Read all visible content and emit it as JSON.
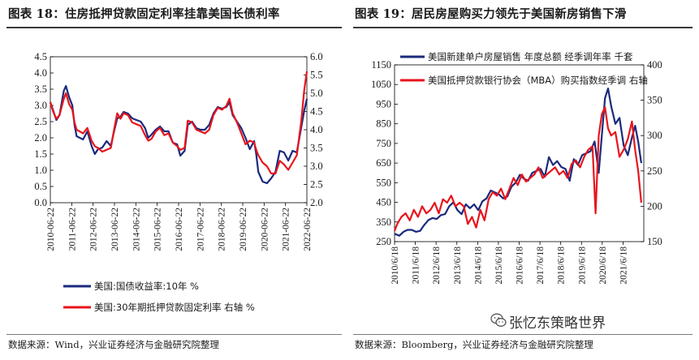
{
  "left": {
    "title": "图表 18：住房抵押贷款固定利率挂靠美国长债利率",
    "source": "数据来源：Wind，兴业证券经济与金融研究院整理"
  },
  "right": {
    "title": "图表 19：居民房屋购买力领先于美国新房销售下滑",
    "source": "数据来源：Bloomberg，兴业证券经济与金融研究院整理"
  },
  "watermark": {
    "text": "张忆东策略世界",
    "icon": "wechat-icon"
  },
  "colors": {
    "navy": "#1a2a7c",
    "red": "#e8141c"
  },
  "chart_data": [
    {
      "type": "line",
      "x_ticks": [
        "2010-06-22",
        "2011-06-22",
        "2012-06-22",
        "2013-06-22",
        "2014-06-22",
        "2015-06-22",
        "2016-06-22",
        "2017-06-22",
        "2018-06-22",
        "2019-06-22",
        "2020-06-22",
        "2021-06-22",
        "2022-06-22"
      ],
      "y_left": {
        "range": [
          0,
          4.5
        ],
        "ticks": [
          "0.0",
          "0.5",
          "1.0",
          "1.5",
          "2.0",
          "2.5",
          "3.0",
          "3.5",
          "4.0",
          "4.5"
        ]
      },
      "y_right": {
        "range": [
          2.0,
          6.0
        ],
        "ticks": [
          "2.0",
          "2.5",
          "3.0",
          "3.5",
          "4.0",
          "4.5",
          "5.0",
          "5.5",
          "6.0"
        ]
      },
      "legend_position": "bottom",
      "series": [
        {
          "name": "美国:国债收益率:10年 %",
          "axis": "left",
          "color": "#1a2a7c",
          "x": [
            2010.47,
            2010.6,
            2010.75,
            2010.9,
            2011.1,
            2011.2,
            2011.35,
            2011.5,
            2011.6,
            2011.7,
            2011.85,
            2012.0,
            2012.2,
            2012.4,
            2012.55,
            2012.7,
            2012.9,
            2013.1,
            2013.3,
            2013.45,
            2013.6,
            2013.75,
            2013.9,
            2014.1,
            2014.3,
            2014.5,
            2014.7,
            2014.9,
            2015.05,
            2015.2,
            2015.4,
            2015.6,
            2015.8,
            2016.0,
            2016.2,
            2016.4,
            2016.55,
            2016.75,
            2016.9,
            2017.1,
            2017.3,
            2017.5,
            2017.7,
            2017.9,
            2018.1,
            2018.3,
            2018.5,
            2018.7,
            2018.85,
            2019.0,
            2019.2,
            2019.4,
            2019.6,
            2019.8,
            2020.0,
            2020.1,
            2020.2,
            2020.4,
            2020.6,
            2020.8,
            2021.0,
            2021.2,
            2021.4,
            2021.6,
            2021.8,
            2022.0,
            2022.2,
            2022.35,
            2022.47
          ],
          "y": [
            3.1,
            2.85,
            2.55,
            2.7,
            3.45,
            3.6,
            3.25,
            3.0,
            2.4,
            2.05,
            2.0,
            1.95,
            2.2,
            1.75,
            1.5,
            1.65,
            1.7,
            1.9,
            1.75,
            2.2,
            2.6,
            2.65,
            2.8,
            2.75,
            2.6,
            2.55,
            2.5,
            2.3,
            2.0,
            2.1,
            2.25,
            2.35,
            2.2,
            2.2,
            1.85,
            1.8,
            1.45,
            1.6,
            2.4,
            2.5,
            2.3,
            2.25,
            2.25,
            2.4,
            2.75,
            2.95,
            2.9,
            2.95,
            3.1,
            2.7,
            2.5,
            2.3,
            2.0,
            1.65,
            1.9,
            1.5,
            0.95,
            0.65,
            0.6,
            0.75,
            0.95,
            1.6,
            1.55,
            1.3,
            1.6,
            1.55,
            2.3,
            2.85,
            3.2
          ]
        },
        {
          "name": "美国:30年期抵押贷款固定利率 右轴 %",
          "axis": "right",
          "color": "#e8141c",
          "x": [
            2010.47,
            2010.6,
            2010.75,
            2010.9,
            2011.1,
            2011.2,
            2011.35,
            2011.5,
            2011.6,
            2011.7,
            2011.85,
            2012.0,
            2012.2,
            2012.4,
            2012.55,
            2012.7,
            2012.9,
            2013.1,
            2013.3,
            2013.45,
            2013.6,
            2013.75,
            2013.9,
            2014.1,
            2014.3,
            2014.5,
            2014.7,
            2014.9,
            2015.05,
            2015.2,
            2015.4,
            2015.6,
            2015.8,
            2016.0,
            2016.2,
            2016.4,
            2016.55,
            2016.75,
            2016.9,
            2017.1,
            2017.3,
            2017.5,
            2017.7,
            2017.9,
            2018.1,
            2018.3,
            2018.5,
            2018.7,
            2018.85,
            2019.0,
            2019.2,
            2019.4,
            2019.6,
            2019.8,
            2020.0,
            2020.1,
            2020.2,
            2020.4,
            2020.6,
            2020.8,
            2021.0,
            2021.2,
            2021.4,
            2021.6,
            2021.8,
            2022.0,
            2022.2,
            2022.35,
            2022.47
          ],
          "y": [
            4.75,
            4.5,
            4.3,
            4.4,
            4.85,
            5.0,
            4.7,
            4.55,
            4.2,
            4.0,
            3.95,
            3.9,
            4.05,
            3.7,
            3.55,
            3.5,
            3.4,
            3.45,
            3.5,
            4.0,
            4.45,
            4.3,
            4.45,
            4.4,
            4.2,
            4.15,
            4.1,
            3.85,
            3.7,
            3.75,
            3.95,
            4.05,
            3.85,
            3.9,
            3.65,
            3.55,
            3.45,
            3.5,
            4.25,
            4.2,
            4.0,
            3.95,
            3.9,
            4.0,
            4.4,
            4.6,
            4.55,
            4.65,
            4.85,
            4.45,
            4.2,
            3.9,
            3.6,
            3.7,
            3.65,
            3.45,
            3.3,
            3.1,
            3.0,
            2.8,
            2.8,
            3.15,
            3.05,
            2.9,
            3.1,
            3.3,
            4.2,
            5.1,
            5.6
          ]
        }
      ]
    },
    {
      "type": "line",
      "x_ticks": [
        "2010/6/18",
        "2011/6/18",
        "2012/6/18",
        "2013/6/18",
        "2014/6/18",
        "2015/6/18",
        "2016/6/18",
        "2017/6/18",
        "2018/6/18",
        "2019/6/18",
        "2020/6/18",
        "2021/6/18"
      ],
      "y_left": {
        "range": [
          250,
          1150
        ],
        "ticks": [
          "250",
          "350",
          "450",
          "550",
          "650",
          "750",
          "850",
          "950",
          "1050",
          "1150"
        ]
      },
      "y_right": {
        "range": [
          150,
          400
        ],
        "ticks": [
          "150",
          "200",
          "250",
          "300",
          "350",
          "400"
        ]
      },
      "legend_position": "top-left",
      "series": [
        {
          "name": "美国新建单户房屋销售 年度总额 经季调年率 千套",
          "axis": "left",
          "color": "#1a2a7c",
          "x": [
            2010.47,
            2010.7,
            2010.9,
            2011.1,
            2011.3,
            2011.5,
            2011.7,
            2011.9,
            2012.1,
            2012.3,
            2012.5,
            2012.7,
            2012.9,
            2013.1,
            2013.3,
            2013.5,
            2013.7,
            2013.9,
            2014.1,
            2014.3,
            2014.5,
            2014.7,
            2014.9,
            2015.1,
            2015.3,
            2015.5,
            2015.7,
            2015.9,
            2016.1,
            2016.3,
            2016.5,
            2016.7,
            2016.9,
            2017.1,
            2017.3,
            2017.5,
            2017.7,
            2017.9,
            2018.1,
            2018.3,
            2018.5,
            2018.7,
            2018.9,
            2019.1,
            2019.3,
            2019.5,
            2019.7,
            2019.9,
            2020.1,
            2020.3,
            2020.45,
            2020.6,
            2020.75,
            2020.9,
            2021.1,
            2021.3,
            2021.5,
            2021.7,
            2021.9,
            2022.05,
            2022.2,
            2022.35
          ],
          "y": [
            290,
            280,
            300,
            310,
            310,
            300,
            305,
            335,
            360,
            370,
            365,
            385,
            390,
            430,
            450,
            410,
            390,
            440,
            420,
            440,
            410,
            455,
            470,
            510,
            500,
            490,
            470,
            480,
            530,
            550,
            590,
            570,
            560,
            600,
            610,
            620,
            580,
            680,
            640,
            660,
            630,
            620,
            560,
            670,
            640,
            690,
            700,
            710,
            760,
            600,
            790,
            980,
            1030,
            940,
            850,
            880,
            740,
            690,
            780,
            840,
            760,
            650
          ]
        },
        {
          "name": "美国抵押贷款银行协会（MBA）购买指数经季调 右轴",
          "axis": "right",
          "color": "#e8141c",
          "x": [
            2010.47,
            2010.6,
            2010.8,
            2011.0,
            2011.2,
            2011.4,
            2011.6,
            2011.8,
            2012.0,
            2012.2,
            2012.4,
            2012.6,
            2012.8,
            2013.0,
            2013.2,
            2013.4,
            2013.6,
            2013.8,
            2014.0,
            2014.2,
            2014.4,
            2014.6,
            2014.8,
            2015.0,
            2015.2,
            2015.4,
            2015.6,
            2015.8,
            2016.0,
            2016.2,
            2016.4,
            2016.6,
            2016.8,
            2017.0,
            2017.2,
            2017.4,
            2017.6,
            2017.8,
            2018.0,
            2018.2,
            2018.4,
            2018.6,
            2018.8,
            2019.0,
            2019.2,
            2019.4,
            2019.6,
            2019.8,
            2020.0,
            2020.15,
            2020.3,
            2020.45,
            2020.6,
            2020.75,
            2020.9,
            2021.1,
            2021.3,
            2021.5,
            2021.7,
            2021.9,
            2022.05,
            2022.2,
            2022.35
          ],
          "y": [
            165,
            175,
            185,
            190,
            180,
            195,
            185,
            200,
            190,
            195,
            205,
            190,
            210,
            205,
            215,
            200,
            205,
            200,
            175,
            185,
            170,
            195,
            180,
            210,
            220,
            215,
            225,
            210,
            225,
            240,
            230,
            245,
            235,
            240,
            245,
            255,
            240,
            245,
            250,
            255,
            245,
            250,
            240,
            260,
            265,
            255,
            270,
            280,
            285,
            190,
            300,
            330,
            340,
            310,
            300,
            305,
            270,
            280,
            295,
            320,
            280,
            250,
            205
          ]
        }
      ]
    }
  ]
}
